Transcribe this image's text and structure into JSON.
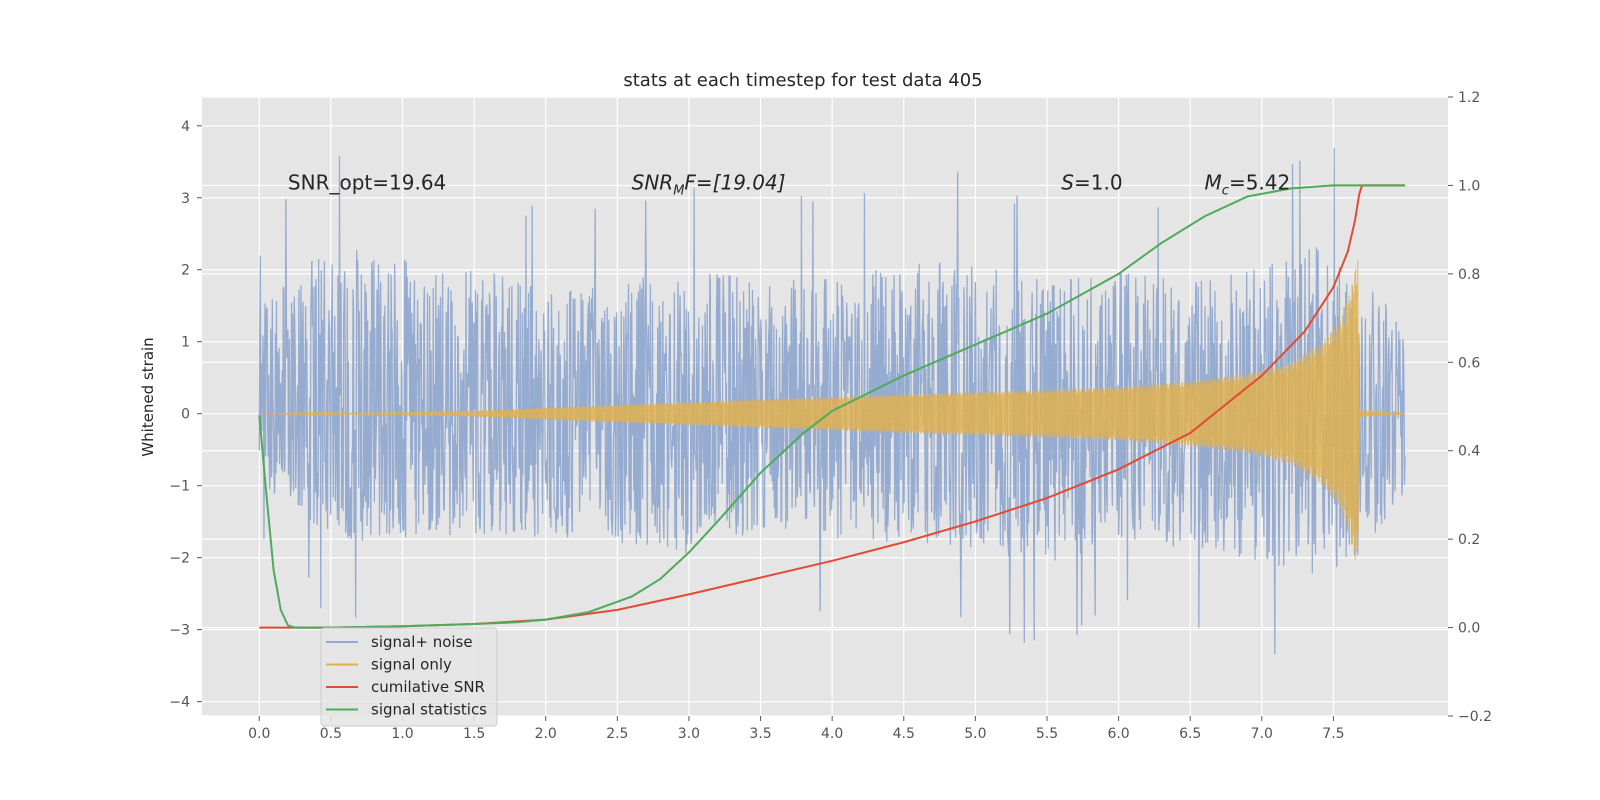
{
  "chart_data": {
    "type": "line",
    "title": "stats at each timestep for test data 405",
    "ylabel": "Whitened strain",
    "xlabel": "",
    "y2label": "",
    "xlim": [
      -0.4,
      8.3
    ],
    "ylim": [
      -4.2,
      4.4
    ],
    "y2lim": [
      -0.2,
      1.2
    ],
    "xticks": [
      "0.0",
      "0.5",
      "1.0",
      "1.5",
      "2.0",
      "2.5",
      "3.0",
      "3.5",
      "4.0",
      "4.5",
      "5.0",
      "5.5",
      "6.0",
      "6.5",
      "7.0",
      "7.5"
    ],
    "yticks": [
      "4",
      "3",
      "2",
      "1",
      "0",
      "−1",
      "−2",
      "−3",
      "−4"
    ],
    "y2ticks": [
      "1.2",
      "1.0",
      "0.8",
      "0.6",
      "0.4",
      "0.2",
      "0.0",
      "−0.2"
    ],
    "grid": true,
    "legend_position": "lower-left",
    "annotations": [
      {
        "text": "SNR_opt=19.64",
        "x": 0.2,
        "y": 3.2
      },
      {
        "main": "SNR",
        "sub": "M",
        "tail": "F=[19.04]",
        "x": 2.6,
        "y": 3.2
      },
      {
        "main": "S",
        "tail": "=1.0",
        "x": 5.6,
        "y": 3.2
      },
      {
        "main": "M",
        "sub": "c",
        "tail": "=5.42",
        "x": 6.6,
        "y": 3.2
      }
    ],
    "series": [
      {
        "name": "signal+ noise",
        "color": "#91a8cf",
        "axis": "left",
        "t_range": [
          0.0,
          8.0
        ],
        "envelope_t": [
          0.0,
          0.5,
          1.0,
          1.5,
          2.0,
          2.5,
          3.0,
          3.5,
          4.0,
          4.5,
          5.0,
          5.5,
          6.0,
          6.5,
          7.0,
          7.5,
          8.0
        ],
        "envelope_max": [
          2.4,
          4.0,
          3.55,
          3.35,
          2.8,
          2.9,
          3.4,
          3.0,
          3.05,
          3.4,
          3.4,
          3.0,
          3.2,
          3.0,
          3.35,
          3.9,
          2.0
        ],
        "envelope_min": [
          -1.7,
          -2.9,
          -2.8,
          -2.7,
          -2.8,
          -2.9,
          -3.2,
          -2.6,
          -2.8,
          -2.9,
          -3.0,
          -3.45,
          -2.8,
          -3.1,
          -3.3,
          -3.75,
          -2.0
        ]
      },
      {
        "name": "signal only",
        "color": "#e0b050",
        "axis": "left",
        "t": [
          0.0,
          0.5,
          1.0,
          1.5,
          2.0,
          2.5,
          3.0,
          3.5,
          4.0,
          4.5,
          5.0,
          5.5,
          6.0,
          6.5,
          6.9,
          7.2,
          7.4,
          7.55,
          7.62,
          7.67,
          7.68,
          8.0
        ],
        "amplitude": [
          0.0,
          0.01,
          0.02,
          0.04,
          0.08,
          0.12,
          0.16,
          0.2,
          0.23,
          0.27,
          0.3,
          0.33,
          0.37,
          0.45,
          0.55,
          0.7,
          0.95,
          1.3,
          1.7,
          2.2,
          0.05,
          0.0
        ]
      },
      {
        "name": "cumilative SNR",
        "color": "#e24a33",
        "axis": "right",
        "x": [
          0.0,
          0.5,
          1.0,
          1.5,
          2.0,
          2.5,
          3.0,
          3.5,
          4.0,
          4.5,
          5.0,
          5.5,
          6.0,
          6.5,
          7.0,
          7.3,
          7.5,
          7.6,
          7.65,
          7.68,
          7.7,
          8.0
        ],
        "y": [
          0.0,
          0.0,
          0.003,
          0.008,
          0.018,
          0.04,
          0.075,
          0.113,
          0.151,
          0.193,
          0.24,
          0.293,
          0.358,
          0.44,
          0.57,
          0.67,
          0.77,
          0.85,
          0.92,
          0.98,
          1.0,
          1.0
        ]
      },
      {
        "name": "signal statistics",
        "color": "#4eaa5c",
        "axis": "right",
        "x": [
          0.0,
          0.05,
          0.1,
          0.15,
          0.2,
          0.25,
          0.3,
          0.5,
          1.0,
          1.5,
          1.8,
          2.0,
          2.3,
          2.6,
          2.8,
          3.0,
          3.2,
          3.5,
          3.8,
          4.0,
          4.5,
          5.0,
          5.5,
          6.0,
          6.3,
          6.6,
          6.9,
          7.2,
          7.5,
          8.0
        ],
        "y": [
          0.48,
          0.3,
          0.13,
          0.04,
          0.005,
          0.0,
          0.0,
          0.0,
          0.003,
          0.008,
          0.012,
          0.018,
          0.035,
          0.07,
          0.11,
          0.17,
          0.24,
          0.35,
          0.44,
          0.49,
          0.57,
          0.64,
          0.71,
          0.8,
          0.87,
          0.93,
          0.975,
          0.993,
          1.0,
          1.0
        ]
      }
    ]
  }
}
